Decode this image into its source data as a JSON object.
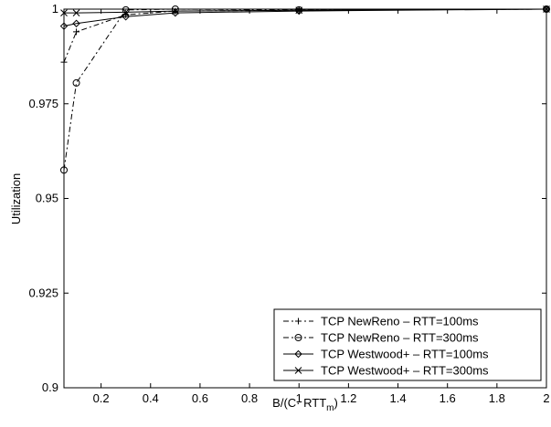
{
  "chart_data": {
    "type": "line",
    "title": "",
    "xlabel_parts": {
      "prefix": "B/(C· RTT",
      "subscript": "m",
      "suffix": ")"
    },
    "ylabel": "Utilization",
    "xlim": [
      0.05,
      2
    ],
    "ylim": [
      0.9,
      1.0
    ],
    "xticks": [
      0.2,
      0.4,
      0.6,
      0.8,
      1,
      1.2,
      1.4,
      1.6,
      1.8,
      2
    ],
    "xtick_labels": [
      "0.2",
      "0.4",
      "0.6",
      "0.8",
      "1",
      "1.2",
      "1.4",
      "1.6",
      "1.8",
      "2"
    ],
    "yticks": [
      0.9,
      0.925,
      0.95,
      0.975,
      1.0
    ],
    "ytick_labels": [
      "0.9",
      "0.925",
      "0.95",
      "0.975",
      "1"
    ],
    "grid": false,
    "legend_position": "bottom-right",
    "colors": {
      "lines": "#000000",
      "background": "#ffffff"
    },
    "series": [
      {
        "name": "TCP NewReno – RTT=100ms",
        "marker": "plus",
        "dash": "6,3,2,3",
        "x": [
          0.05,
          0.1,
          0.3,
          0.5,
          1,
          2
        ],
        "y": [
          0.986,
          0.994,
          0.9985,
          0.9995,
          0.9997,
          1.0
        ]
      },
      {
        "name": "TCP NewReno – RTT=300ms",
        "marker": "circle",
        "dash": "6,3,2,3",
        "x": [
          0.05,
          0.1,
          0.3,
          0.5,
          1,
          2
        ],
        "y": [
          0.9575,
          0.9805,
          0.9998,
          1.0,
          0.9998,
          1.0
        ]
      },
      {
        "name": "TCP Westwood+ – RTT=100ms",
        "marker": "diamond",
        "dash": "",
        "x": [
          0.05,
          0.1,
          0.3,
          0.5,
          1,
          2
        ],
        "y": [
          0.9955,
          0.9962,
          0.998,
          0.999,
          0.9995,
          1.0
        ]
      },
      {
        "name": "TCP Westwood+ – RTT=300ms",
        "marker": "x",
        "dash": "",
        "x": [
          0.05,
          0.1,
          0.3,
          0.5,
          1,
          2
        ],
        "y": [
          0.999,
          0.999,
          0.9992,
          0.9995,
          0.9997,
          1.0
        ]
      }
    ]
  }
}
